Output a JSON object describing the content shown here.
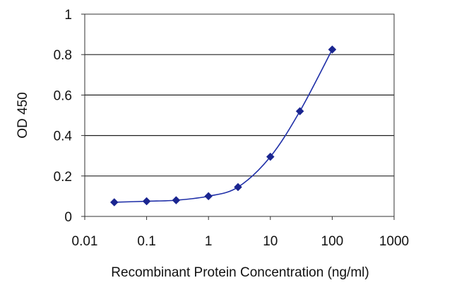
{
  "chart_data": {
    "type": "line",
    "title": "",
    "xlabel": "Recombinant Protein Concentration (ng/ml)",
    "ylabel": "OD 450",
    "x_scale": "log",
    "xlim": [
      0.01,
      1000
    ],
    "ylim": [
      0,
      1
    ],
    "x_ticks": [
      "0.01",
      "0.1",
      "1",
      "10",
      "100",
      "1000"
    ],
    "y_ticks": [
      "0",
      "0.2",
      "0.4",
      "0.6",
      "0.8",
      "1"
    ],
    "grid": "horizontal",
    "legend": "none",
    "series": [
      {
        "color": "#1f2fa8",
        "marker": "diamond",
        "x": [
          0.03,
          0.1,
          0.3,
          1,
          3,
          10,
          30,
          100
        ],
        "y": [
          0.07,
          0.075,
          0.08,
          0.1,
          0.145,
          0.295,
          0.52,
          0.825
        ]
      }
    ]
  }
}
